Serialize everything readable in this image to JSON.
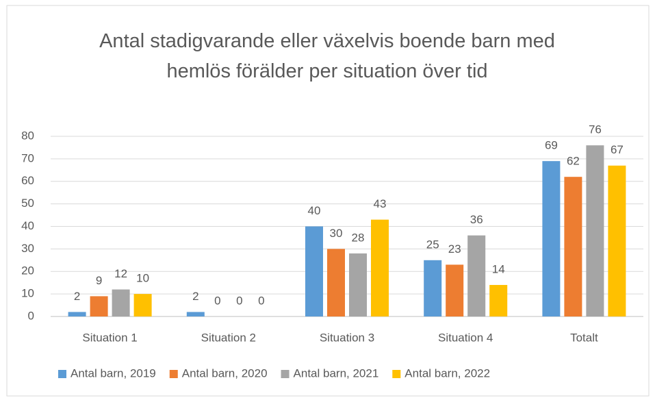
{
  "chart_data": {
    "type": "bar",
    "title": "Antal stadigvarande eller växelvis boende barn med hemlös förälder per situation över tid",
    "categories": [
      "Situation 1",
      "Situation 2",
      "Situation 3",
      "Situation 4",
      "Totalt"
    ],
    "series": [
      {
        "name": "Antal barn, 2019",
        "color": "#5b9bd5",
        "values": [
          2,
          2,
          40,
          25,
          69
        ]
      },
      {
        "name": "Antal barn, 2020",
        "color": "#ed7d31",
        "values": [
          9,
          0,
          30,
          23,
          62
        ]
      },
      {
        "name": "Antal barn, 2021",
        "color": "#a5a5a5",
        "values": [
          12,
          0,
          28,
          36,
          76
        ]
      },
      {
        "name": "Antal barn, 2022",
        "color": "#ffc000",
        "values": [
          10,
          0,
          43,
          14,
          67
        ]
      }
    ],
    "ylim": [
      0,
      80
    ],
    "yticks": [
      0,
      10,
      20,
      30,
      40,
      50,
      60,
      70,
      80
    ],
    "grid": true,
    "legend": "bottom"
  }
}
